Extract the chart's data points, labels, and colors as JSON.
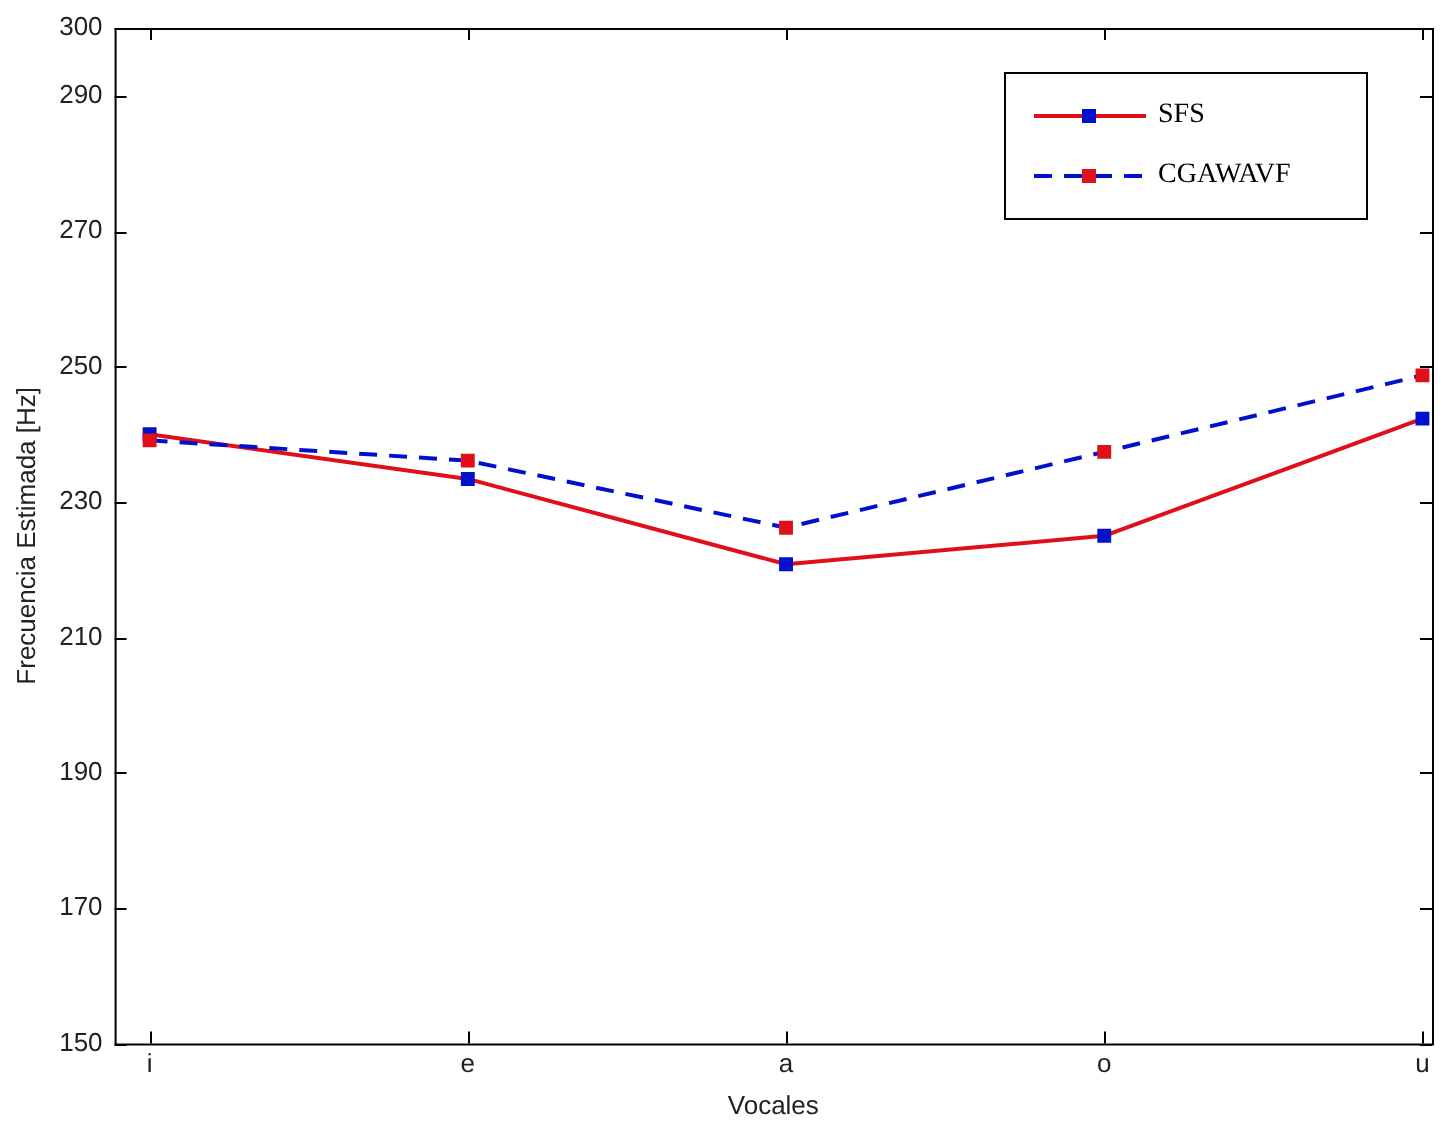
{
  "chart_data": {
    "type": "line",
    "xlabel": "Vocales",
    "ylabel": "Frecuencia Estimada [Hz]",
    "categories": [
      "i",
      "e",
      "a",
      "o",
      "u"
    ],
    "series": [
      {
        "name": "SFS",
        "color": "#e0101a",
        "colors": [
          "#0010cc",
          "#0010cc",
          "#0010cc",
          "#0010cc",
          "#0010cc"
        ],
        "values": [
          240,
          233.4,
          220.8,
          225,
          242.3
        ],
        "line_style": "solid"
      },
      {
        "name": "CGAWAVF",
        "color": "#0010cc",
        "colors": [
          "#e0101a",
          "#e0101a",
          "#e0101a",
          "#e0101a",
          "#e0101a"
        ],
        "values": [
          239.1,
          236.1,
          226.2,
          237.4,
          248.7
        ],
        "line_style": "dashed"
      }
    ],
    "ylim": [
      150,
      300
    ],
    "yticks": [
      150,
      170,
      190,
      210,
      230,
      250,
      270,
      290,
      300
    ],
    "marker": "square",
    "grid": false,
    "legend": "top right"
  }
}
